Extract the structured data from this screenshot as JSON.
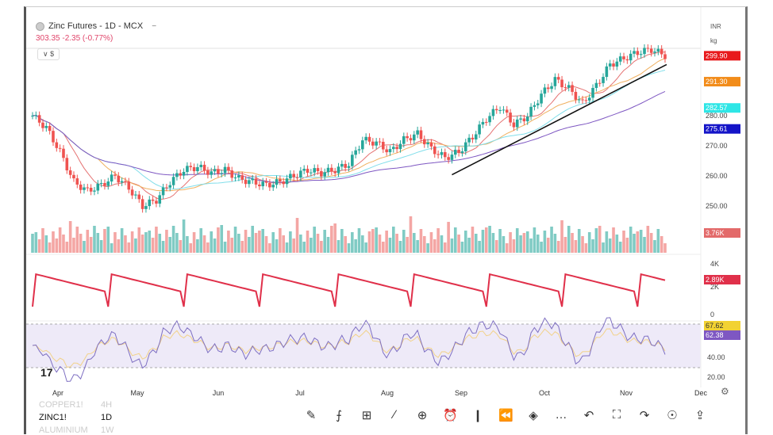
{
  "header": {
    "title": "Zinc Futures - 1D - MCX",
    "quote": "303.35 -2.35 (-0.77%)",
    "collapse_label": "∨ $",
    "minimize": "−"
  },
  "currency": {
    "unit": "INR",
    "qty": "kg"
  },
  "price_labels": [
    {
      "text": "299.90",
      "color": "#e8191c",
      "value": 299.9
    },
    {
      "text": "291.30",
      "color": "#f28c1a",
      "value": 291.3
    },
    {
      "text": "282.57",
      "color": "#2ee6e6",
      "value": 282.57
    },
    {
      "text": "275.61",
      "color": "#1414c8",
      "value": 275.61
    }
  ],
  "price_axis": [
    {
      "text": "280.00",
      "value": 280
    },
    {
      "text": "270.00",
      "value": 270
    },
    {
      "text": "260.00",
      "value": 260
    },
    {
      "text": "250.00",
      "value": 250
    }
  ],
  "volume_label": {
    "text": "3.76K",
    "color": "#e36a6a"
  },
  "indicator": {
    "axis": [
      "4K",
      "2K",
      "0"
    ],
    "label": "2.89K",
    "label_color": "#e0304a"
  },
  "rsi": {
    "labels": [
      {
        "text": "67.62",
        "color": "#f2d233"
      },
      {
        "text": "62.38",
        "color": "#7e57c2"
      }
    ],
    "axis": [
      "40.00",
      "20.00"
    ]
  },
  "months": [
    "Apr",
    "May",
    "Jun",
    "Jul",
    "Aug",
    "Sep",
    "Oct",
    "Nov",
    "Dec"
  ],
  "bottom": {
    "symbols": [
      {
        "name": "COPPER1!",
        "tf": "4H"
      },
      {
        "name": "ZINC1!",
        "tf": "1D"
      },
      {
        "name": "ALUMINIUM",
        "tf": "1W"
      }
    ],
    "tools": [
      {
        "name": "brush-icon",
        "g": "✎"
      },
      {
        "name": "indicators-icon",
        "g": "⨍"
      },
      {
        "name": "grid-icon",
        "g": "⊞"
      },
      {
        "name": "trend-tool-icon",
        "g": "∕"
      },
      {
        "name": "add-icon",
        "g": "⊕"
      },
      {
        "name": "alert-icon",
        "g": "⏰"
      },
      {
        "name": "candles-icon",
        "g": "❙"
      },
      {
        "name": "replay-icon",
        "g": "⏪"
      },
      {
        "name": "layers-icon",
        "g": "◈"
      },
      {
        "name": "more-icon",
        "g": "…"
      },
      {
        "name": "undo-icon",
        "g": "↶"
      },
      {
        "name": "fullscreen-icon",
        "g": "⛶"
      },
      {
        "name": "redo-icon",
        "g": "↷"
      },
      {
        "name": "lightbulb-icon",
        "g": "☉"
      },
      {
        "name": "share-icon",
        "g": "⇪"
      }
    ],
    "settings_icon": "⚙"
  },
  "chart_data": {
    "type": "candlestick",
    "closes": [
      280,
      276,
      268,
      258,
      255,
      257,
      260,
      256,
      250,
      252,
      258,
      262,
      263,
      261,
      262,
      259,
      258,
      257,
      258,
      260,
      262,
      261,
      262,
      264,
      272,
      271,
      268,
      272,
      274,
      269,
      266,
      268,
      273,
      279,
      283,
      277,
      280,
      287,
      292,
      289,
      284,
      290,
      297,
      299,
      301,
      302,
      300
    ],
    "trendline": [
      263,
      297
    ],
    "colors": {
      "up": "#26a69a",
      "down": "#ef5350"
    }
  }
}
